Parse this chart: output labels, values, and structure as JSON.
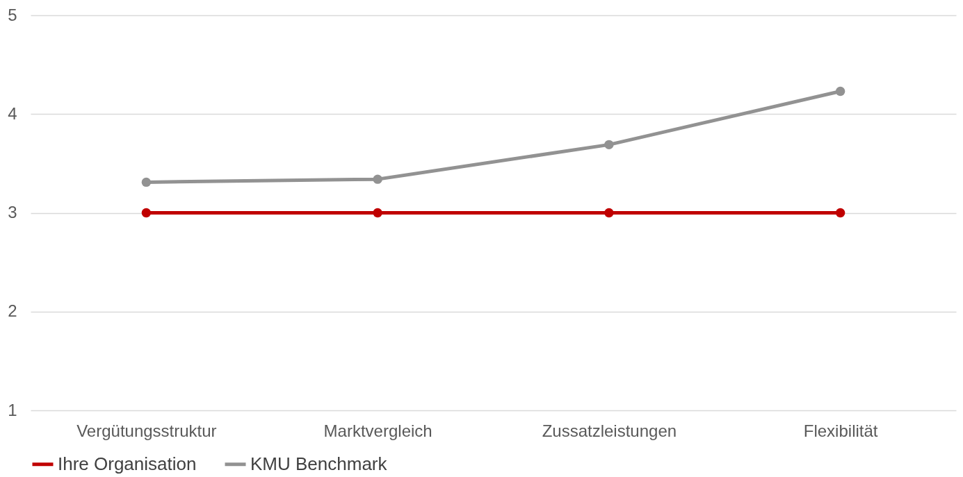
{
  "chart_data": {
    "type": "line",
    "categories": [
      "Vergütungsstruktur",
      "Marktvergleich",
      "Zussatzleistungen",
      "Flexibilität"
    ],
    "series": [
      {
        "name": "Ihre Organisation",
        "color": "#c00000",
        "values": [
          3,
          3,
          3,
          3
        ]
      },
      {
        "name": "KMU Benchmark",
        "color": "#929292",
        "values": [
          3.31,
          3.34,
          3.69,
          4.23
        ]
      }
    ],
    "ylim": [
      1,
      5
    ],
    "yticks": [
      1,
      2,
      3,
      4,
      5
    ],
    "grid": "y",
    "legend": "bottom",
    "marker": "circle",
    "line_style": "solid"
  }
}
